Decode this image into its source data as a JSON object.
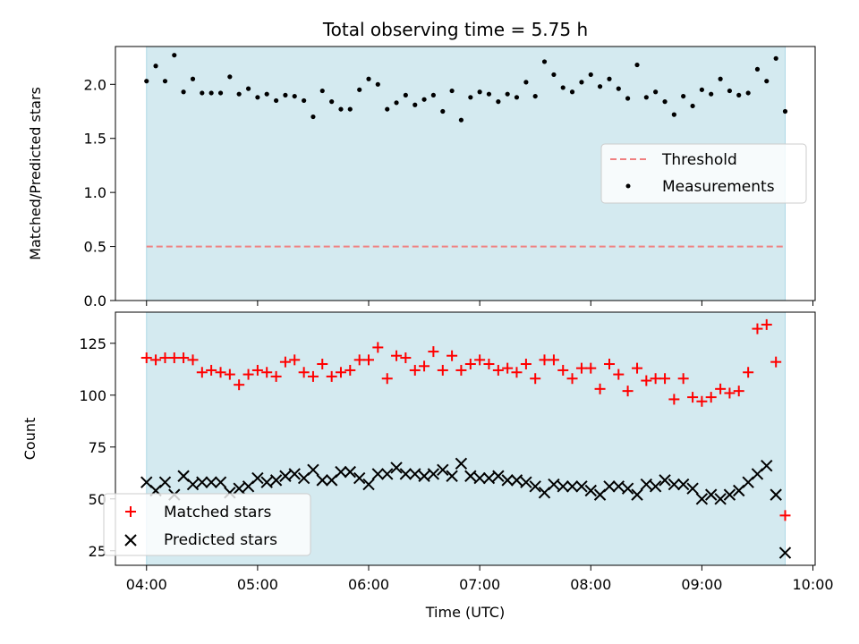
{
  "title": "Total observing time = 5.75 h",
  "chart_data": [
    {
      "type": "scatter",
      "panel": "top",
      "ylabel": "Matched/Predicted stars",
      "ylim": [
        0,
        2.35
      ],
      "yticks": [
        "0.0",
        "0.5",
        "1.0",
        "1.5",
        "2.0"
      ],
      "ytick_values": [
        0,
        0.5,
        1.0,
        1.5,
        2.0
      ],
      "shaded_span_hours": [
        4.0,
        9.75
      ],
      "shade_color": "#d4eaf0",
      "legend_position": "center-right",
      "threshold": {
        "name": "Threshold",
        "value": 0.5,
        "x_range_hours": [
          4.0,
          9.75
        ],
        "color": "#f08080",
        "style": "dashed"
      },
      "series": [
        {
          "name": "Measurements",
          "color": "#000000",
          "marker": "dot",
          "x": [
            4.0,
            4.083,
            4.167,
            4.25,
            4.333,
            4.417,
            4.5,
            4.583,
            4.667,
            4.75,
            4.833,
            4.917,
            5.0,
            5.083,
            5.167,
            5.25,
            5.333,
            5.417,
            5.5,
            5.583,
            5.667,
            5.75,
            5.833,
            5.917,
            6.0,
            6.083,
            6.167,
            6.25,
            6.333,
            6.417,
            6.5,
            6.583,
            6.667,
            6.75,
            6.833,
            6.917,
            7.0,
            7.083,
            7.167,
            7.25,
            7.333,
            7.417,
            7.5,
            7.583,
            7.667,
            7.75,
            7.833,
            7.917,
            8.0,
            8.083,
            8.167,
            8.25,
            8.333,
            8.417,
            8.5,
            8.583,
            8.667,
            8.75,
            8.833,
            8.917,
            9.0,
            9.083,
            9.167,
            9.25,
            9.333,
            9.417,
            9.5,
            9.583,
            9.667,
            9.75
          ],
          "y": [
            2.03,
            2.17,
            2.03,
            2.27,
            1.93,
            2.05,
            1.92,
            1.92,
            1.92,
            2.07,
            1.91,
            1.96,
            1.88,
            1.91,
            1.85,
            1.9,
            1.89,
            1.85,
            1.7,
            1.94,
            1.84,
            1.77,
            1.77,
            1.95,
            2.05,
            2.0,
            1.77,
            1.83,
            1.9,
            1.81,
            1.86,
            1.9,
            1.75,
            1.94,
            1.67,
            1.88,
            1.93,
            1.91,
            1.84,
            1.91,
            1.88,
            2.02,
            1.89,
            2.21,
            2.09,
            1.97,
            1.93,
            2.02,
            2.09,
            1.98,
            2.05,
            1.96,
            1.87,
            2.18,
            1.88,
            1.93,
            1.84,
            1.72,
            1.89,
            1.8,
            1.95,
            1.91,
            2.05,
            1.94,
            1.9,
            1.92,
            2.14,
            2.03,
            2.24,
            1.75
          ]
        }
      ]
    },
    {
      "type": "scatter",
      "panel": "bottom",
      "xlabel": "Time (UTC)",
      "ylabel": "Count",
      "ylim": [
        18,
        140
      ],
      "yticks": [
        "25",
        "50",
        "75",
        "100",
        "125"
      ],
      "ytick_values": [
        25,
        50,
        75,
        100,
        125
      ],
      "xlim_hours": [
        3.72,
        10.02
      ],
      "xticks": [
        "04:00",
        "05:00",
        "06:00",
        "07:00",
        "08:00",
        "09:00",
        "10:00"
      ],
      "xtick_values_hours": [
        4,
        5,
        6,
        7,
        8,
        9,
        10
      ],
      "shaded_span_hours": [
        4.0,
        9.75
      ],
      "shade_color": "#d4eaf0",
      "legend_position": "lower-left",
      "series": [
        {
          "name": "Matched stars",
          "color": "#ff0000",
          "marker": "plus",
          "x": [
            4.0,
            4.083,
            4.167,
            4.25,
            4.333,
            4.417,
            4.5,
            4.583,
            4.667,
            4.75,
            4.833,
            4.917,
            5.0,
            5.083,
            5.167,
            5.25,
            5.333,
            5.417,
            5.5,
            5.583,
            5.667,
            5.75,
            5.833,
            5.917,
            6.0,
            6.083,
            6.167,
            6.25,
            6.333,
            6.417,
            6.5,
            6.583,
            6.667,
            6.75,
            6.833,
            6.917,
            7.0,
            7.083,
            7.167,
            7.25,
            7.333,
            7.417,
            7.5,
            7.583,
            7.667,
            7.75,
            7.833,
            7.917,
            8.0,
            8.083,
            8.167,
            8.25,
            8.333,
            8.417,
            8.5,
            8.583,
            8.667,
            8.75,
            8.833,
            8.917,
            9.0,
            9.083,
            9.167,
            9.25,
            9.333,
            9.417,
            9.5,
            9.583,
            9.667,
            9.75
          ],
          "y": [
            118,
            117,
            118,
            118,
            118,
            117,
            111,
            112,
            111,
            110,
            105,
            110,
            112,
            111,
            109,
            116,
            117,
            111,
            109,
            115,
            109,
            111,
            112,
            117,
            117,
            123,
            108,
            119,
            118,
            112,
            114,
            121,
            112,
            119,
            112,
            115,
            117,
            115,
            112,
            113,
            111,
            115,
            108,
            117,
            117,
            112,
            108,
            113,
            113,
            103,
            115,
            110,
            102,
            113,
            107,
            108,
            108,
            98,
            108,
            99,
            97,
            99,
            103,
            101,
            102,
            111,
            132,
            134,
            116,
            42
          ]
        },
        {
          "name": "Predicted stars",
          "color": "#000000",
          "marker": "x",
          "x": [
            4.0,
            4.083,
            4.167,
            4.25,
            4.333,
            4.417,
            4.5,
            4.583,
            4.667,
            4.75,
            4.833,
            4.917,
            5.0,
            5.083,
            5.167,
            5.25,
            5.333,
            5.417,
            5.5,
            5.583,
            5.667,
            5.75,
            5.833,
            5.917,
            6.0,
            6.083,
            6.167,
            6.25,
            6.333,
            6.417,
            6.5,
            6.583,
            6.667,
            6.75,
            6.833,
            6.917,
            7.0,
            7.083,
            7.167,
            7.25,
            7.333,
            7.417,
            7.5,
            7.583,
            7.667,
            7.75,
            7.833,
            7.917,
            8.0,
            8.083,
            8.167,
            8.25,
            8.333,
            8.417,
            8.5,
            8.583,
            8.667,
            8.75,
            8.833,
            8.917,
            9.0,
            9.083,
            9.167,
            9.25,
            9.333,
            9.417,
            9.5,
            9.583,
            9.667,
            9.75
          ],
          "y": [
            58,
            54,
            58,
            52,
            61,
            57,
            58,
            58,
            58,
            53,
            55,
            56,
            60,
            58,
            59,
            61,
            62,
            60,
            64,
            59,
            59,
            63,
            63,
            60,
            57,
            62,
            62,
            65,
            62,
            62,
            61,
            62,
            64,
            61,
            67,
            61,
            60,
            60,
            61,
            59,
            59,
            58,
            56,
            53,
            57,
            56,
            56,
            56,
            54,
            52,
            56,
            56,
            55,
            52,
            57,
            56,
            59,
            57,
            57,
            55,
            50,
            52,
            50,
            52,
            54,
            58,
            62,
            66,
            52,
            24
          ]
        }
      ]
    }
  ]
}
